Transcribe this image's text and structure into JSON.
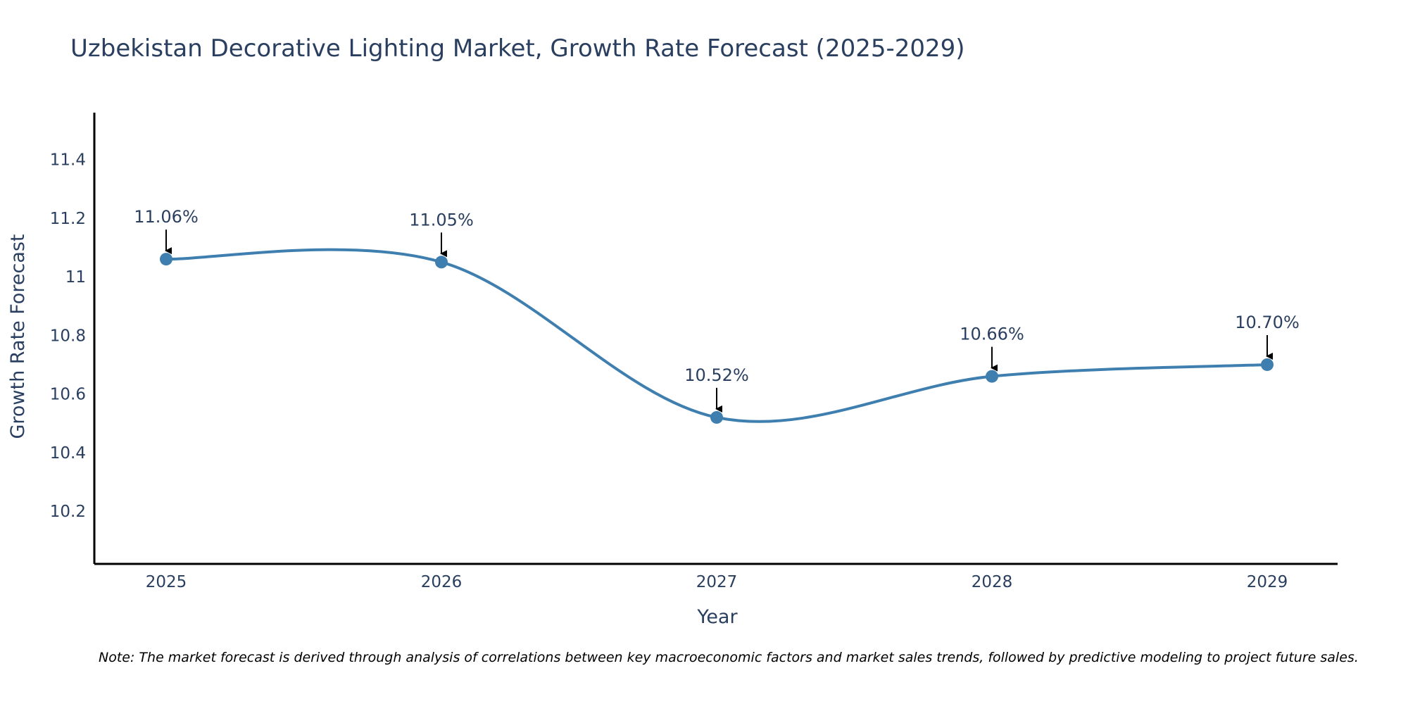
{
  "chart_data": {
    "type": "line",
    "title": "Uzbekistan Decorative Lighting Market, Growth Rate Forecast (2025-2029)",
    "xlabel": "Year",
    "ylabel": "Growth Rate Forecast",
    "categories": [
      "2025",
      "2026",
      "2027",
      "2028",
      "2029"
    ],
    "values": [
      11.06,
      11.05,
      10.52,
      10.66,
      10.7
    ],
    "data_labels": [
      "11.06%",
      "11.05%",
      "10.52%",
      "10.66%",
      "10.70%"
    ],
    "y_ticks": [
      10.2,
      10.4,
      10.6,
      10.8,
      11,
      11.2,
      11.4
    ],
    "y_tick_labels": [
      "10.2",
      "10.4",
      "10.6",
      "10.8",
      "11",
      "11.2",
      "11.4"
    ],
    "ylim": [
      10.02,
      11.56
    ],
    "line_shape": "spline",
    "grid": false,
    "note": "Note: The market forecast is derived through analysis of correlations between key macroeconomic factors and market sales trends, followed by predictive modeling to project future sales."
  },
  "colors": {
    "line": "#3f7fb0",
    "marker": "#3f7fb0",
    "axis": "#000000",
    "text": "#2a3f5f"
  }
}
